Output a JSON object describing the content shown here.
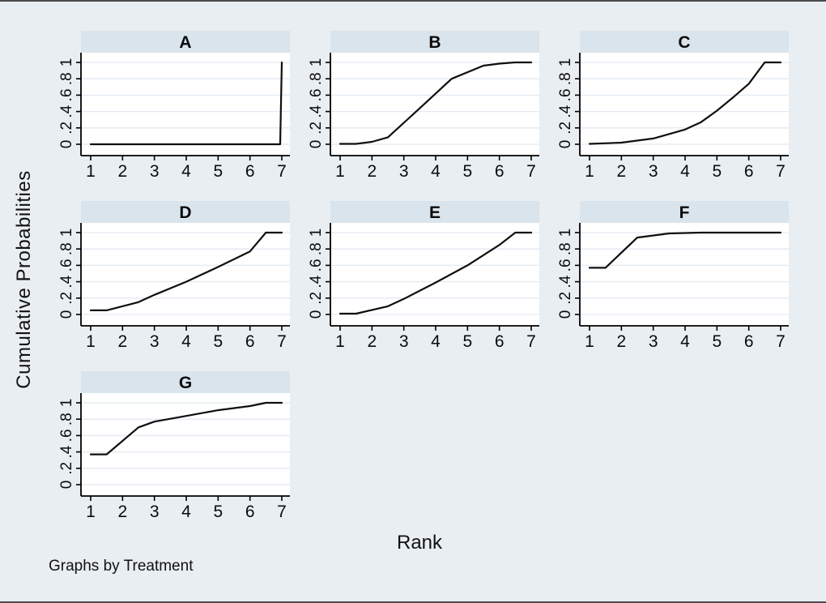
{
  "figure": {
    "ylabel": "Cumulative Probabilities",
    "xlabel": "Rank",
    "note": "Graphs by Treatment"
  },
  "colors": {
    "background": "#e9eef2",
    "panel_header_bg": "#dae4ec",
    "plot_bg": "#ffffff",
    "gridline": "#e2eaf2",
    "axis": "#000000",
    "line": "#0f0f0f",
    "frame_border": "#4b4b4b",
    "text": "#0b0b0b"
  },
  "chart_data": {
    "type": "line",
    "layout": "small_multiples_by_treatment",
    "title": "",
    "xlabel": "Rank",
    "ylabel": "Cumulative Probabilities",
    "note": "Graphs by Treatment",
    "x_ticks": [
      1,
      2,
      3,
      4,
      5,
      6,
      7
    ],
    "y_ticks": [
      0,
      0.2,
      0.4,
      0.6,
      0.8,
      1
    ],
    "y_tick_labels": [
      "0",
      ".2",
      ".4",
      ".6",
      ".8",
      "1"
    ],
    "xlim": [
      0.7,
      7.25
    ],
    "ylim": [
      -0.14,
      1.12
    ],
    "grid": "horizontal",
    "legend": "none",
    "panels": [
      {
        "label": "A",
        "points": [
          [
            1,
            0
          ],
          [
            6.95,
            0
          ],
          [
            7,
            1
          ]
        ]
      },
      {
        "label": "B",
        "points": [
          [
            1,
            0.005
          ],
          [
            1.5,
            0.005
          ],
          [
            2,
            0.03
          ],
          [
            2.5,
            0.085
          ],
          [
            3.5,
            0.44
          ],
          [
            4.5,
            0.8
          ],
          [
            5.5,
            0.96
          ],
          [
            6,
            0.985
          ],
          [
            6.5,
            1
          ],
          [
            7,
            1
          ]
        ]
      },
      {
        "label": "C",
        "points": [
          [
            1,
            0.005
          ],
          [
            2,
            0.02
          ],
          [
            3,
            0.07
          ],
          [
            4,
            0.18
          ],
          [
            4.5,
            0.27
          ],
          [
            5,
            0.41
          ],
          [
            5.5,
            0.57
          ],
          [
            6,
            0.74
          ],
          [
            6.5,
            1
          ],
          [
            7,
            1
          ]
        ]
      },
      {
        "label": "D",
        "points": [
          [
            1,
            0.05
          ],
          [
            1.5,
            0.05
          ],
          [
            2.5,
            0.15
          ],
          [
            3,
            0.24
          ],
          [
            4,
            0.4
          ],
          [
            5,
            0.58
          ],
          [
            6,
            0.77
          ],
          [
            6.5,
            1
          ],
          [
            7,
            1
          ]
        ]
      },
      {
        "label": "E",
        "points": [
          [
            1,
            0.01
          ],
          [
            1.5,
            0.01
          ],
          [
            2.5,
            0.1
          ],
          [
            3,
            0.19
          ],
          [
            4,
            0.39
          ],
          [
            5,
            0.6
          ],
          [
            6,
            0.85
          ],
          [
            6.5,
            1
          ],
          [
            7,
            1
          ]
        ]
      },
      {
        "label": "F",
        "points": [
          [
            1,
            0.57
          ],
          [
            1.5,
            0.57
          ],
          [
            2.5,
            0.94
          ],
          [
            3.5,
            0.99
          ],
          [
            4.5,
            1
          ],
          [
            7,
            1
          ]
        ]
      },
      {
        "label": "G",
        "points": [
          [
            1,
            0.37
          ],
          [
            1.5,
            0.37
          ],
          [
            2.5,
            0.7
          ],
          [
            3,
            0.77
          ],
          [
            4,
            0.84
          ],
          [
            5,
            0.91
          ],
          [
            6,
            0.96
          ],
          [
            6.5,
            1
          ],
          [
            7,
            1
          ]
        ]
      }
    ]
  }
}
